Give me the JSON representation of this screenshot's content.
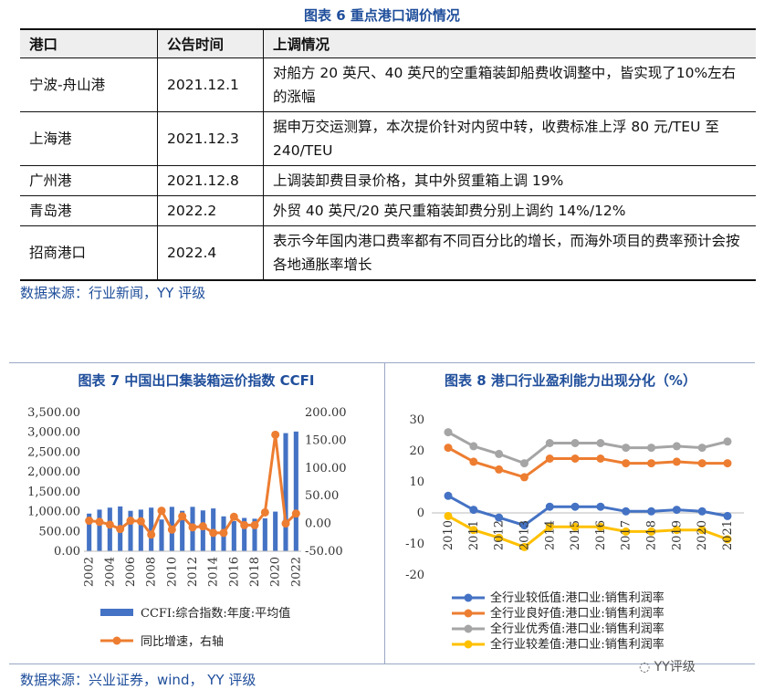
{
  "table_section": {
    "title": "图表 6 重点港口调价情况",
    "headers": [
      "港口",
      "公告时间",
      "上调情况"
    ],
    "rows": [
      {
        "port": "宁波-舟山港",
        "date": "2021.12.1",
        "detail": "对船方 20 英尺、40 英尺的空重箱装卸船费收调整中，皆实现了10%左右的涨幅"
      },
      {
        "port": "上海港",
        "date": "2021.12.3",
        "detail": "据申万交运测算，本次提价针对内贸中转，收费标准上浮 80 元/TEU 至 240/TEU"
      },
      {
        "port": "广州港",
        "date": "2021.12.8",
        "detail": "上调装卸费目录价格，其中外贸重箱上调 19%"
      },
      {
        "port": "青岛港",
        "date": "2022.2",
        "detail": "外贸 40 英尺/20 英尺重箱装卸费分别上调约 14%/12%"
      },
      {
        "port": "招商港口",
        "date": "2022.4",
        "detail": "表示今年国内港口费率都有不同百分比的增长，而海外项目的费率预计会按各地通胀率增长"
      }
    ],
    "source": "数据来源：行业新闻，YY 评级"
  },
  "charts_section": {
    "source": "数据来源：兴业证券，wind， YY 评级",
    "watermark": "YY评级"
  },
  "chart_data": [
    {
      "type": "bar",
      "title": "图表 7 中国出口集装箱运价指数 CCFI",
      "x": [
        2002,
        2003,
        2004,
        2005,
        2006,
        2007,
        2008,
        2009,
        2010,
        2011,
        2012,
        2013,
        2014,
        2015,
        2016,
        2017,
        2018,
        2019,
        2020,
        2021,
        2022
      ],
      "x_tick_labels": [
        "2002",
        "2004",
        "2006",
        "2008",
        "2010",
        "2012",
        "2014",
        "2016",
        "2018",
        "2020",
        "2022"
      ],
      "y_left_ticks": [
        "0.00",
        "500.00",
        "1,000.00",
        "1,500.00",
        "2,000.00",
        "2,500.00",
        "3,000.00",
        "3,500.00"
      ],
      "y_right_ticks": [
        "-50.00",
        "0.00",
        "50.00",
        "100.00",
        "150.00",
        "200.00"
      ],
      "ylim_left": [
        0,
        3500
      ],
      "ylim_right": [
        -50,
        200
      ],
      "series": [
        {
          "name": "CCFI:综合指数:年度:平均值",
          "axis": "left",
          "kind": "bar",
          "color": "#4472c4",
          "values": [
            950,
            1050,
            1100,
            1130,
            1020,
            1050,
            1100,
            800,
            1120,
            1020,
            1120,
            1030,
            1080,
            880,
            760,
            840,
            820,
            830,
            1000,
            2980,
            3020
          ]
        },
        {
          "name": "同比增速，右轴",
          "axis": "right",
          "kind": "line",
          "color": "#ed7d31",
          "values": [
            5,
            3,
            -2,
            -10,
            5,
            4,
            -20,
            23,
            -11,
            13,
            -7,
            -5,
            -17,
            -17,
            12,
            -3,
            -3,
            20,
            160,
            0,
            18
          ]
        }
      ]
    },
    {
      "type": "line",
      "title": "图表 8 港口行业盈利能力出现分化（%）",
      "x": [
        "2010",
        "2011",
        "2012",
        "2013",
        "2014",
        "2015",
        "2016",
        "2017",
        "2018",
        "2019",
        "2020",
        "2021"
      ],
      "x_tick_labels": [
        "2010",
        "2011",
        "2012",
        "2013",
        "2014",
        "2015",
        "2016",
        "2017",
        "2018",
        "2019",
        "2020",
        "2021"
      ],
      "y_ticks": [
        "-20",
        "-10",
        "0",
        "10",
        "20",
        "30"
      ],
      "ylim": [
        -20,
        30
      ],
      "series": [
        {
          "name": "全行业较低值:港口业:销售利润率",
          "color": "#4472c4",
          "values": [
            5.5,
            1,
            -1.5,
            -4,
            2,
            2,
            2,
            0.5,
            0.5,
            1,
            0.5,
            -1
          ]
        },
        {
          "name": "全行业良好值:港口业:销售利润率",
          "color": "#ed7d31",
          "values": [
            21,
            16.5,
            14,
            11.5,
            17.5,
            17.5,
            17.5,
            16,
            16,
            16.5,
            16,
            16
          ]
        },
        {
          "name": "全行业优秀值:港口业:销售利润率",
          "color": "#a5a5a5",
          "values": [
            26,
            21.5,
            19,
            16,
            22.5,
            22.5,
            22.5,
            21,
            21,
            21.5,
            21,
            23
          ]
        },
        {
          "name": "全行业较差值:港口业:销售利润率",
          "color": "#ffc000",
          "values": [
            -1,
            -5.5,
            -8,
            -11,
            -4.5,
            -4.5,
            -4.5,
            -6,
            -6,
            -5.5,
            -5.5,
            -8.5
          ]
        }
      ]
    }
  ]
}
